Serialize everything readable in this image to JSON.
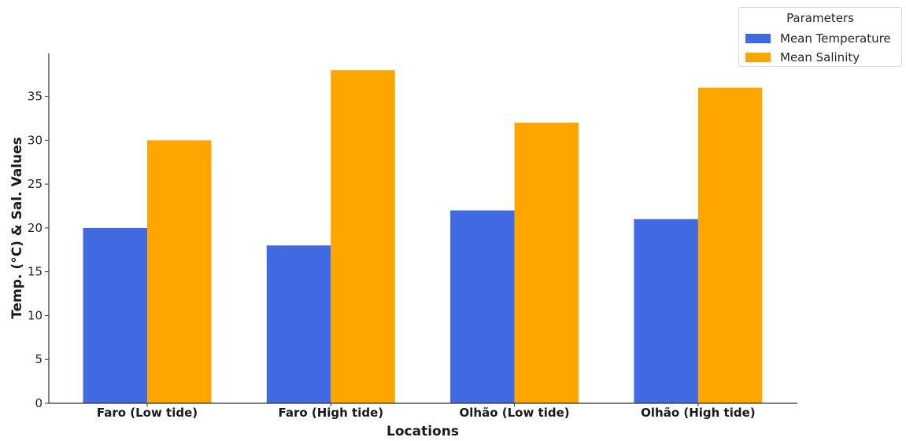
{
  "chart_data": {
    "type": "bar",
    "categories": [
      "Faro (Low tide)",
      "Faro (High tide)",
      "Olhão (Low tide)",
      "Olhão (High tide)"
    ],
    "series": [
      {
        "name": "Mean Temperature",
        "values": [
          20,
          18,
          22,
          21
        ],
        "color": "#4169e1"
      },
      {
        "name": "Mean Salinity",
        "values": [
          30,
          38,
          32,
          36
        ],
        "color": "#ffa500"
      }
    ],
    "xlabel": "Locations",
    "ylabel": "Temp. (°C) & Sal. Values",
    "ylim": [
      0,
      39.9
    ],
    "yticks": [
      0,
      5,
      10,
      15,
      20,
      25,
      30,
      35
    ],
    "grid": false,
    "legend": {
      "title": "Parameters",
      "placement": "top-right"
    }
  }
}
